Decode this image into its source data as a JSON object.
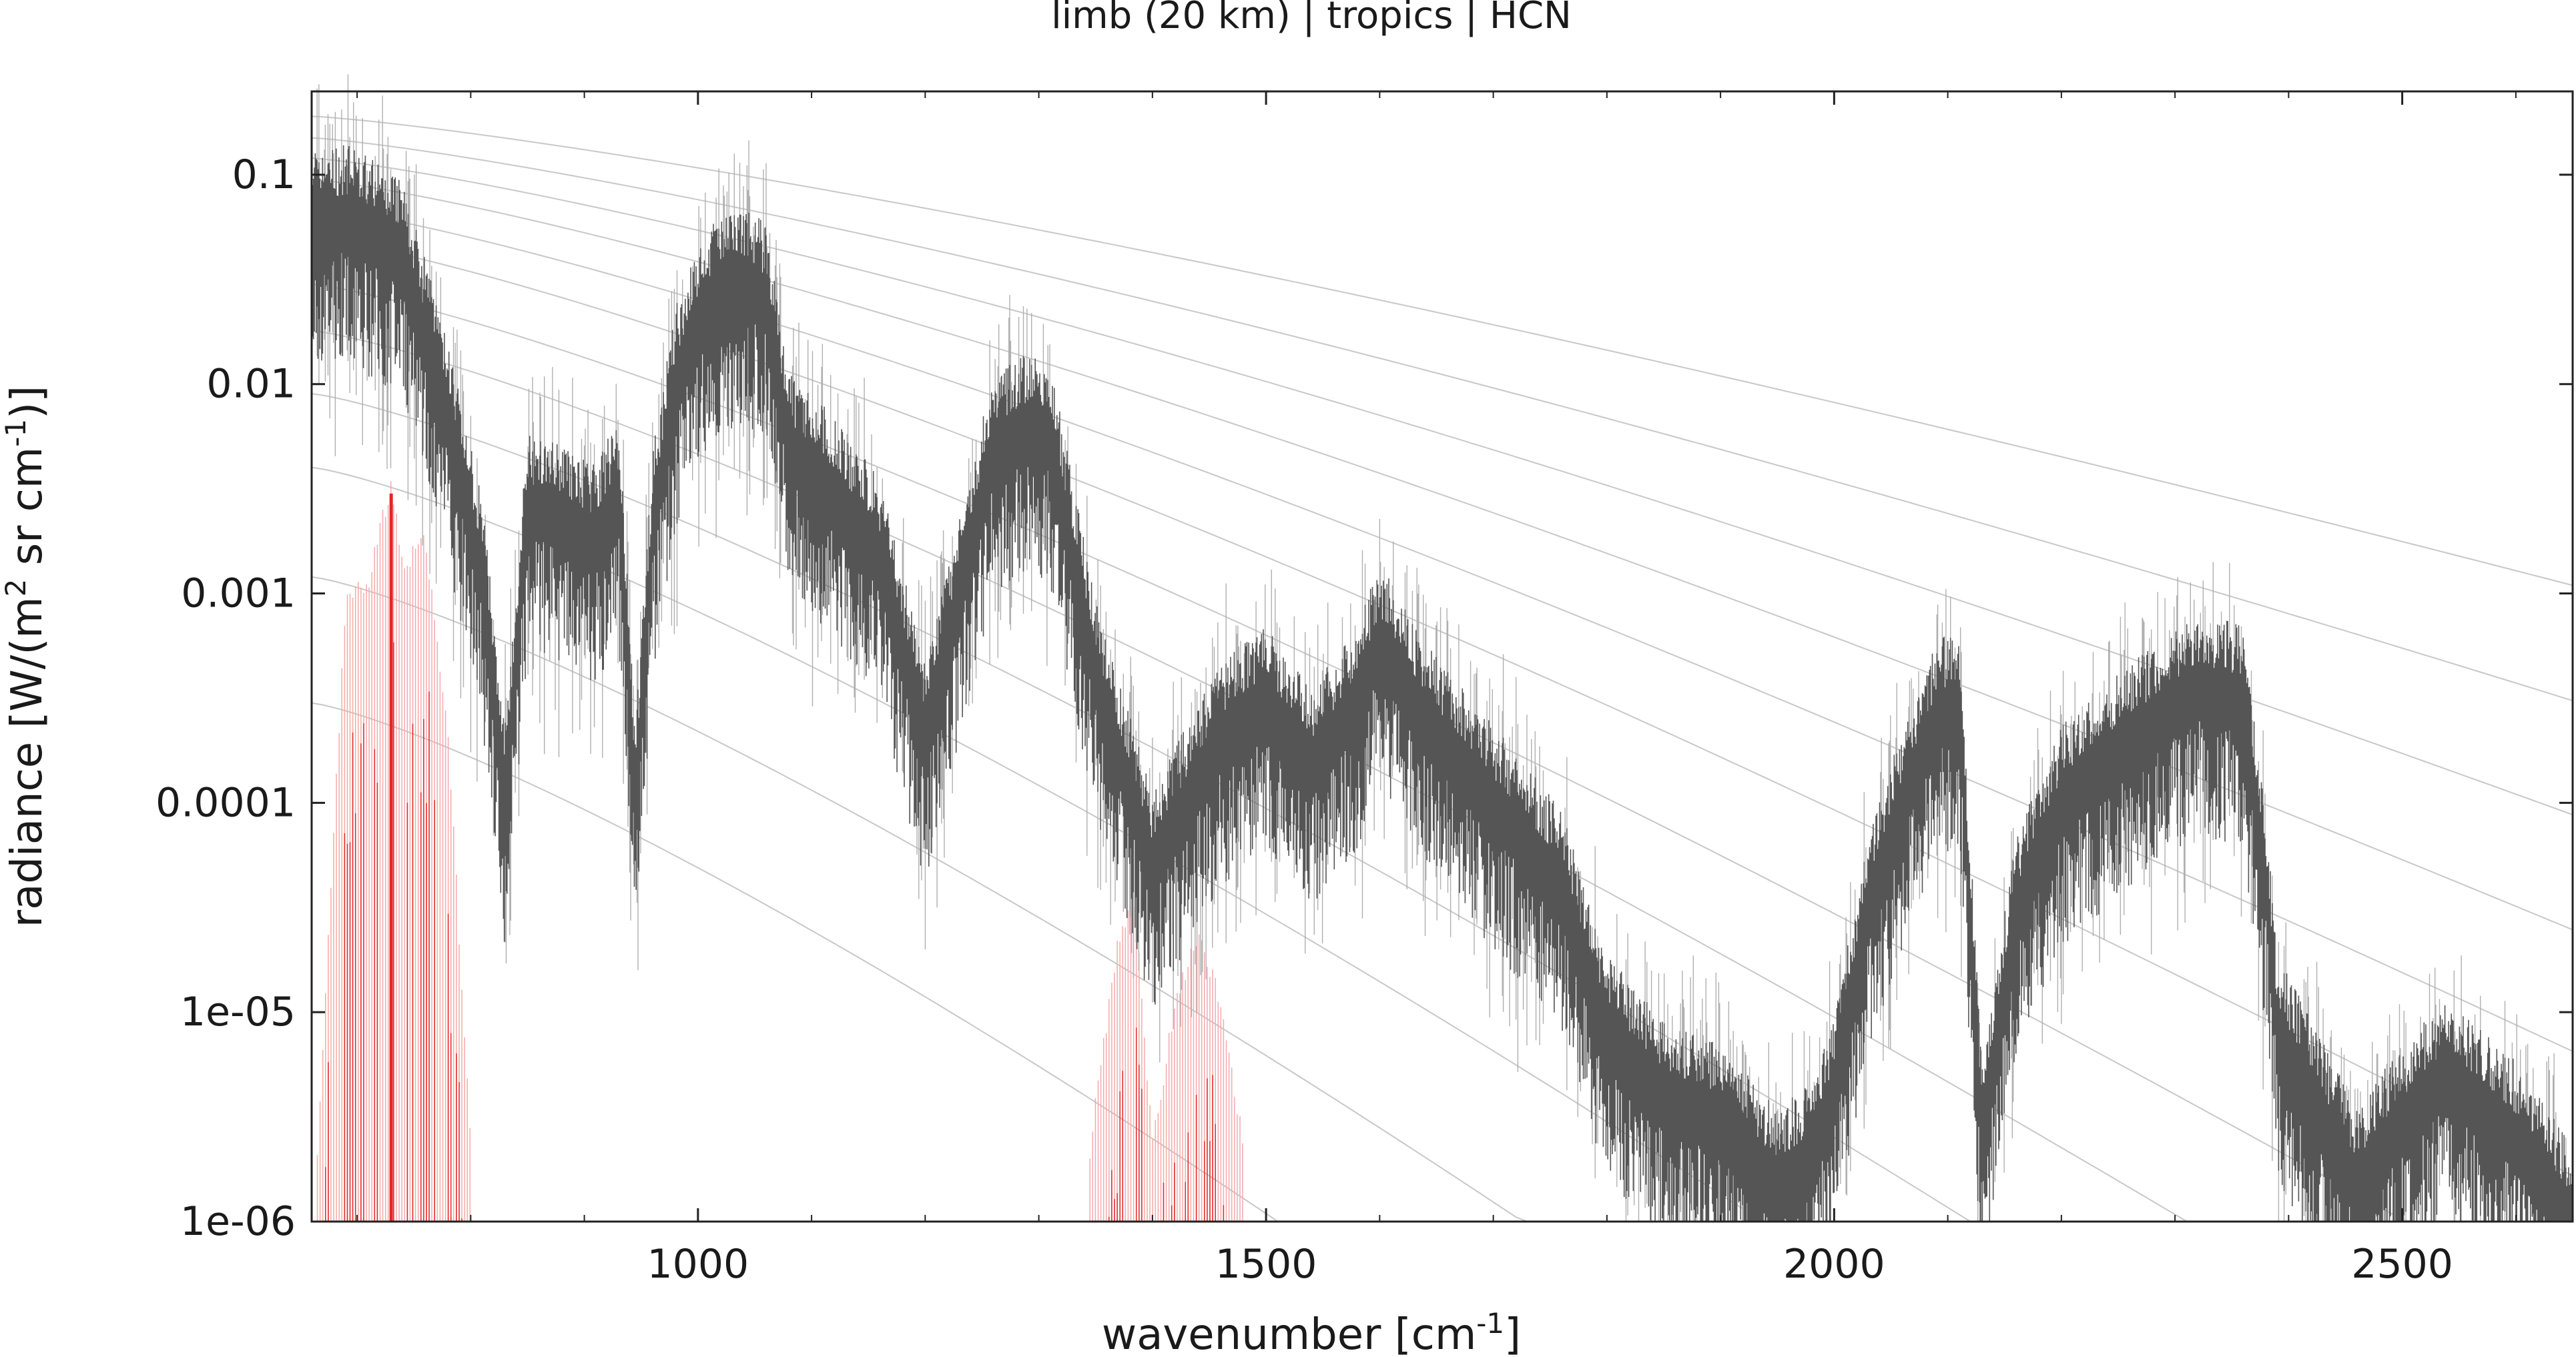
{
  "chart_data": {
    "type": "line",
    "title": "limb (20 km) | tropics | HCN",
    "xlabel": "wavenumber [cm",
    "xlabel_sup": "-1",
    "xlabel_end": "]",
    "ylabel": "radiance [W/(m",
    "ylabel_sup1": "2",
    "ylabel_mid": " sr cm",
    "ylabel_sup2": "-1",
    "ylabel_end": ")]",
    "xlim": [
      660,
      2650
    ],
    "ylim": [
      1e-06,
      0.25
    ],
    "yscale": "log",
    "x_ticks": [
      1000,
      1500,
      2000,
      2500
    ],
    "x_tick_labels": [
      "1000",
      "1500",
      "2000",
      "2500"
    ],
    "y_ticks": [
      1e-06,
      1e-05,
      0.0001,
      0.001,
      0.01,
      0.1
    ],
    "y_tick_labels": [
      "1e-06",
      "1e-05",
      "0.0001",
      "0.001",
      "0.01",
      "0.1"
    ],
    "grid": false,
    "colors": {
      "total_radiance": "#555555",
      "total_radiance_light": "#b0b0b0",
      "hcn_emission": "#e32626",
      "hcn_emission_light": "#f5a9a9",
      "planck_curves": "#c8c8c8"
    },
    "series": [
      {
        "role": "total_radiance",
        "x": [
          660,
          700,
          740,
          780,
          810,
          830,
          850,
          870,
          890,
          910,
          930,
          945,
          960,
          980,
          1000,
          1020,
          1040,
          1060,
          1080,
          1120,
          1160,
          1200,
          1230,
          1260,
          1290,
          1310,
          1350,
          1400,
          1430,
          1460,
          1500,
          1540,
          1580,
          1600,
          1640,
          1700,
          1760,
          1800,
          1850,
          1900,
          1950,
          1980,
          2000,
          2030,
          2060,
          2090,
          2110,
          2130,
          2160,
          2200,
          2260,
          2320,
          2360,
          2380,
          2390,
          2420,
          2460,
          2500,
          2540,
          2600,
          2650
        ],
        "y": [
          0.06,
          0.06,
          0.04,
          0.007,
          0.0012,
          0.0001,
          0.0025,
          0.0025,
          0.002,
          0.0018,
          0.003,
          0.0001,
          0.002,
          0.01,
          0.02,
          0.03,
          0.03,
          0.025,
          0.005,
          0.003,
          0.0015,
          0.0002,
          0.001,
          0.005,
          0.006,
          0.0055,
          0.0004,
          5e-05,
          0.0001,
          0.0002,
          0.0003,
          0.00015,
          0.0003,
          0.0006,
          0.00025,
          0.0001,
          4e-05,
          8e-06,
          4e-06,
          3e-06,
          1.5e-06,
          2e-06,
          4e-06,
          3e-05,
          0.0001,
          0.00025,
          0.0003,
          2.5e-06,
          3e-05,
          0.0001,
          0.0002,
          0.00035,
          0.0003,
          4e-05,
          8e-06,
          4e-06,
          1.5e-06,
          3e-06,
          5e-06,
          2.5e-06,
          1e-06
        ]
      },
      {
        "role": "hcn_emission",
        "x": [
          665,
          690,
          710,
          730,
          740,
          760,
          780,
          800,
          1345,
          1370,
          1385,
          1400,
          1420,
          1440,
          1460,
          1480
        ],
        "y": [
          2e-06,
          0.0008,
          0.001,
          0.003,
          0.0012,
          0.0016,
          0.0002,
          2e-06,
          2e-06,
          2e-05,
          3e-05,
          2e-06,
          1e-05,
          2e-05,
          1e-05,
          2e-06
        ]
      }
    ],
    "planck_curve_starts": [
      0.19,
      0.15,
      0.12,
      0.095,
      0.07,
      0.05,
      0.03,
      0.018,
      0.009,
      0.004,
      0.0012,
      0.0003
    ]
  }
}
